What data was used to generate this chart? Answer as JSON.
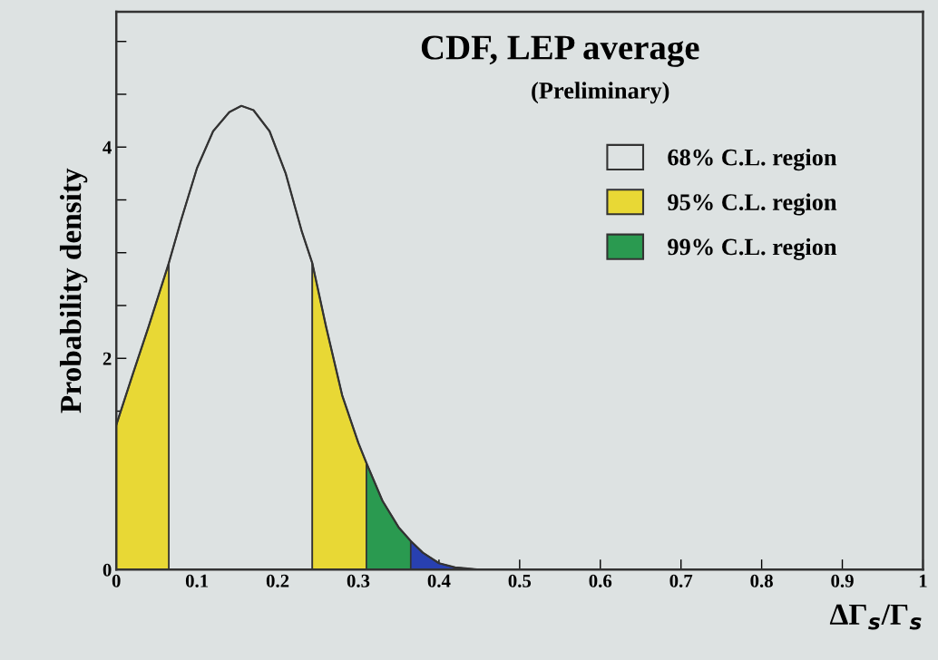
{
  "chart_data": {
    "type": "area",
    "title": "CDF, LEP average",
    "subtitle": "(Preliminary)",
    "xlabel": "ΔΓ$_{s}$/Γ$_{s}$",
    "ylabel": "Probability density",
    "series": [
      {
        "name": "68% C.L. region",
        "color": "#dde2e2",
        "x": [
          0.065,
          0.08,
          0.1,
          0.12,
          0.14,
          0.155,
          0.17,
          0.19,
          0.21,
          0.23,
          0.243
        ],
        "values": [
          2.9,
          3.3,
          3.8,
          4.15,
          4.33,
          4.39,
          4.35,
          4.15,
          3.75,
          3.2,
          2.9
        ]
      },
      {
        "name": "95% C.L. region",
        "color": "#e8d835",
        "x": [
          0,
          0.02,
          0.04,
          0.065,
          0.15,
          0.243,
          0.26,
          0.28,
          0.3,
          0.31
        ],
        "values": [
          1.37,
          1.84,
          2.3,
          2.9,
          null,
          2.9,
          2.3,
          1.65,
          1.2,
          1.01
        ]
      },
      {
        "name": "99% C.L. region",
        "color": "#2a9a50",
        "x": [
          0.31,
          0.33,
          0.35,
          0.365
        ],
        "values": [
          1.01,
          0.65,
          0.4,
          0.27
        ]
      },
      {
        "color": "#2840b0",
        "x": [
          0.365,
          0.38,
          0.4,
          0.42,
          0.45
        ],
        "values": [
          0.27,
          0.16,
          0.06,
          0.02,
          0
        ]
      },
      {
        "type": "line",
        "color": "#333333",
        "x": [
          0,
          0.02,
          0.04,
          0.065,
          0.08,
          0.1,
          0.12,
          0.14,
          0.155,
          0.17,
          0.19,
          0.21,
          0.23,
          0.243,
          0.26,
          0.28,
          0.3,
          0.31,
          0.33,
          0.35,
          0.365,
          0.38,
          0.4,
          0.42,
          0.45,
          0.5,
          1.0
        ],
        "values": [
          1.37,
          1.84,
          2.3,
          2.9,
          3.3,
          3.8,
          4.15,
          4.33,
          4.39,
          4.35,
          4.15,
          3.75,
          3.2,
          2.9,
          2.3,
          1.65,
          1.2,
          1.01,
          0.65,
          0.4,
          0.27,
          0.16,
          0.06,
          0.02,
          0,
          0,
          0
        ]
      }
    ],
    "xlim": [
      0,
      1
    ],
    "xticks": [
      0,
      0.1,
      0.2,
      0.3,
      0.4,
      0.5,
      0.6,
      0.7,
      0.8,
      0.9,
      1
    ],
    "ylim": [
      0,
      5.28
    ],
    "yticks": [
      0,
      {
        "value": 0.5,
        "label": null
      },
      {
        "value": 1,
        "label": null
      },
      {
        "value": 1.5,
        "label": null
      },
      2,
      {
        "value": 2.5,
        "label": null
      },
      {
        "value": 3,
        "label": null
      },
      {
        "value": 3.5,
        "label": null
      },
      4,
      {
        "value": 4.5,
        "label": null
      },
      {
        "value": 5,
        "label": null
      }
    ],
    "grid": false,
    "legend": "top right"
  }
}
